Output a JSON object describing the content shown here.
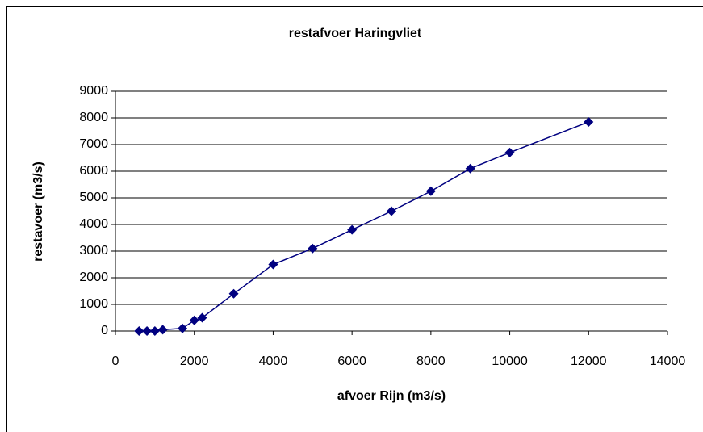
{
  "chart_data": {
    "type": "line",
    "title": "restafvoer Haringvliet",
    "x_label": "afvoer Rijn (m3/s)",
    "y_label": "restavoer (m3/s)",
    "x": [
      600,
      800,
      1000,
      1200,
      1700,
      2000,
      2200,
      3000,
      4000,
      5000,
      6000,
      7000,
      8000,
      9000,
      10000,
      12000
    ],
    "series": [
      {
        "name": "restavoer",
        "color": "#000080",
        "values": [
          0,
          0,
          0,
          50,
          100,
          400,
          500,
          1400,
          2500,
          3100,
          3800,
          4500,
          5250,
          6100,
          6700,
          7850
        ]
      }
    ],
    "xlim": [
      0,
      14000
    ],
    "xticks": [
      0,
      2000,
      4000,
      6000,
      8000,
      10000,
      12000,
      14000
    ],
    "ylim": [
      0,
      9000
    ],
    "yticks": [
      0,
      1000,
      2000,
      3000,
      4000,
      5000,
      6000,
      7000,
      8000,
      9000
    ],
    "grid": true
  }
}
